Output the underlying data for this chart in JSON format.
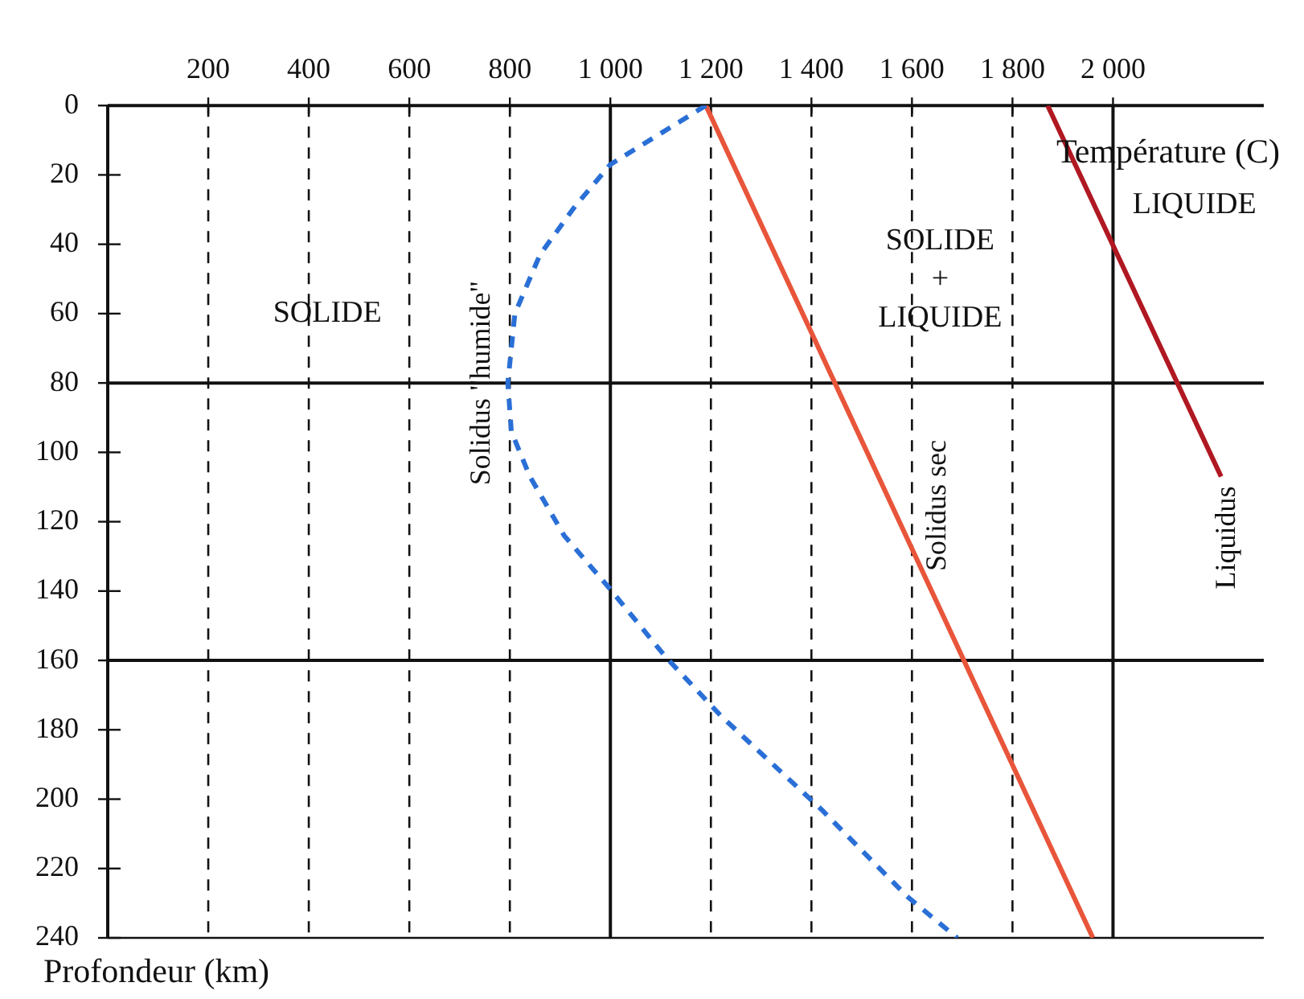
{
  "chart_data": {
    "type": "line",
    "xlabel": "Température (C)",
    "ylabel": "Profondeur (km)",
    "xlim": [
      0,
      2300
    ],
    "ylim": [
      240,
      0
    ],
    "xticks": [
      200,
      400,
      600,
      800,
      {
        "value": 1000,
        "label": "1 000"
      },
      {
        "value": 1200,
        "label": "1 200"
      },
      {
        "value": 1400,
        "label": "1 400"
      },
      {
        "value": 1600,
        "label": "1 600"
      },
      {
        "value": 1800,
        "label": "1 800"
      },
      {
        "value": 2000,
        "label": "2 000"
      }
    ],
    "yticks": [
      0,
      20,
      40,
      60,
      80,
      100,
      120,
      140,
      160,
      180,
      200,
      220,
      240
    ],
    "marker": "none",
    "legend": false,
    "ref_lines": [
      {
        "axis": "x",
        "value": 200,
        "line_style": "dashed"
      },
      {
        "axis": "x",
        "value": 400,
        "line_style": "dashed"
      },
      {
        "axis": "x",
        "value": 600,
        "line_style": "dashed"
      },
      {
        "axis": "x",
        "value": 800,
        "line_style": "dashed"
      },
      {
        "axis": "x",
        "value": 1200,
        "line_style": "dashed"
      },
      {
        "axis": "x",
        "value": 1400,
        "line_style": "dashed"
      },
      {
        "axis": "x",
        "value": 1600,
        "line_style": "dashed"
      },
      {
        "axis": "x",
        "value": 1800,
        "line_style": "dashed"
      },
      {
        "axis": "x",
        "value": 1000,
        "line_style": "solid"
      },
      {
        "axis": "x",
        "value": 2000,
        "line_style": "solid"
      },
      {
        "axis": "y",
        "value": 80,
        "line_style": "solid"
      },
      {
        "axis": "y",
        "value": 160,
        "line_style": "solid"
      }
    ],
    "series": [
      {
        "name": "Solidus \"humide\"",
        "color": "#2a6fd6",
        "line_style": "dashed",
        "x": [
          1190,
          1000,
          930,
          860,
          810,
          796,
          803,
          840,
          908,
          997,
          1110,
          1220,
          1420,
          1590,
          1690
        ],
        "values": [
          0,
          17,
          29,
          43,
          60,
          80,
          94,
          107,
          124,
          139,
          159,
          176,
          203,
          228,
          240
        ]
      },
      {
        "name": "Solidus sec",
        "color": "#e8553a",
        "line_style": "solid",
        "x": [
          1190,
          1960
        ],
        "values": [
          0,
          240
        ]
      },
      {
        "name": "Liquidus",
        "color": "#b01822",
        "line_style": "solid",
        "x": [
          1870,
          2215
        ],
        "values": [
          0,
          107
        ]
      }
    ],
    "annotations": [
      "SOLIDE",
      "SOLIDE\n+\nLIQUIDE",
      "LIQUIDE"
    ]
  }
}
